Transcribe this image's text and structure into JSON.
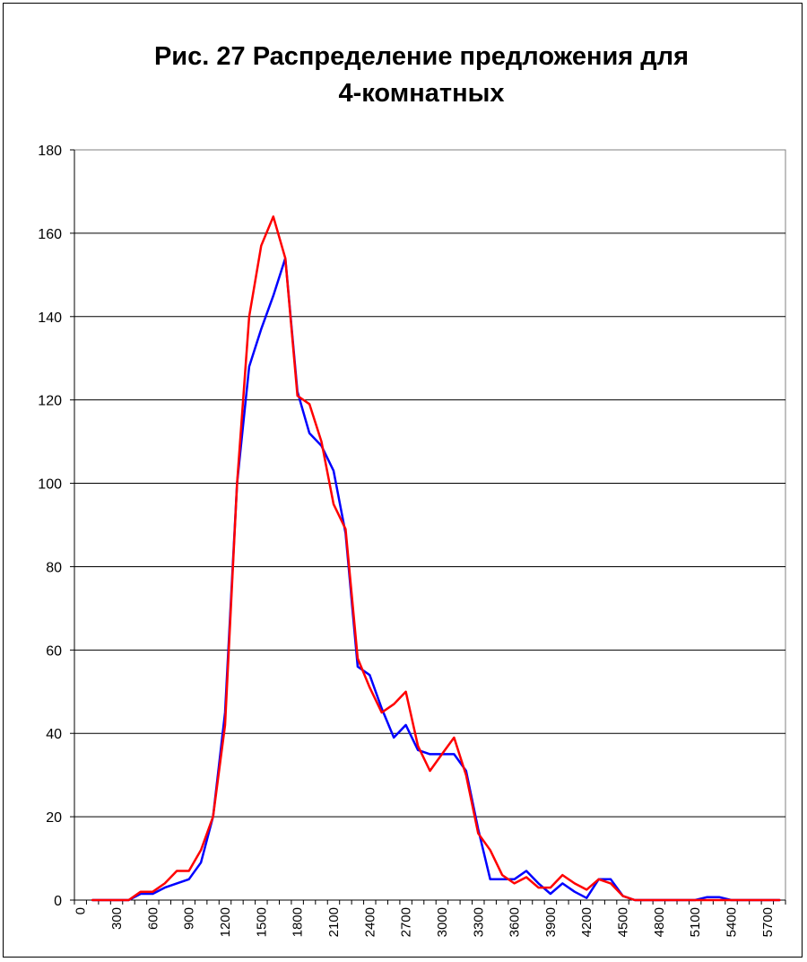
{
  "chart_data": {
    "type": "line",
    "title_lines": [
      "Рис. 27 Распределение предложения для",
      "4-комнатных"
    ],
    "ylim": [
      0,
      180
    ],
    "yticks": [
      0,
      20,
      40,
      60,
      80,
      100,
      120,
      140,
      160,
      180
    ],
    "x_labels": [
      "0",
      "300",
      "600",
      "900",
      "1200",
      "1500",
      "1800",
      "2100",
      "2400",
      "2700",
      "3000",
      "3300",
      "3600",
      "3900",
      "4200",
      "4500",
      "4800",
      "5100",
      "5400",
      "5700"
    ],
    "grid": true,
    "series": [
      {
        "color": "#0000ff",
        "points": [
          [
            100,
            0
          ],
          [
            200,
            0
          ],
          [
            300,
            0
          ],
          [
            400,
            0
          ],
          [
            500,
            1.5
          ],
          [
            600,
            1.5
          ],
          [
            700,
            3
          ],
          [
            800,
            4
          ],
          [
            900,
            5
          ],
          [
            1000,
            9
          ],
          [
            1100,
            20
          ],
          [
            1200,
            45
          ],
          [
            1300,
            100
          ],
          [
            1400,
            128
          ],
          [
            1500,
            137
          ],
          [
            1600,
            145
          ],
          [
            1700,
            154
          ],
          [
            1800,
            122
          ],
          [
            1900,
            112
          ],
          [
            2000,
            109
          ],
          [
            2100,
            103
          ],
          [
            2200,
            88
          ],
          [
            2300,
            56
          ],
          [
            2400,
            54
          ],
          [
            2500,
            46
          ],
          [
            2600,
            39
          ],
          [
            2700,
            42
          ],
          [
            2800,
            36
          ],
          [
            2900,
            35
          ],
          [
            3000,
            35
          ],
          [
            3100,
            35
          ],
          [
            3200,
            31
          ],
          [
            3300,
            17
          ],
          [
            3400,
            5
          ],
          [
            3500,
            5
          ],
          [
            3600,
            5
          ],
          [
            3700,
            7
          ],
          [
            3800,
            4
          ],
          [
            3900,
            1.5
          ],
          [
            4000,
            4
          ],
          [
            4100,
            2
          ],
          [
            4200,
            0.5
          ],
          [
            4300,
            5
          ],
          [
            4400,
            5
          ],
          [
            4500,
            1
          ],
          [
            4600,
            0
          ],
          [
            4700,
            0
          ],
          [
            4800,
            0
          ],
          [
            4900,
            0
          ],
          [
            5000,
            0
          ],
          [
            5100,
            0
          ],
          [
            5200,
            0.7
          ],
          [
            5300,
            0.7
          ],
          [
            5400,
            0
          ],
          [
            5500,
            0
          ],
          [
            5600,
            0
          ],
          [
            5700,
            0
          ],
          [
            5800,
            0
          ]
        ]
      },
      {
        "color": "#ff0000",
        "points": [
          [
            100,
            0
          ],
          [
            200,
            0
          ],
          [
            300,
            0
          ],
          [
            400,
            0
          ],
          [
            500,
            2
          ],
          [
            600,
            2
          ],
          [
            700,
            4
          ],
          [
            800,
            7
          ],
          [
            900,
            7
          ],
          [
            1000,
            12
          ],
          [
            1100,
            20
          ],
          [
            1200,
            42
          ],
          [
            1300,
            100
          ],
          [
            1400,
            140
          ],
          [
            1500,
            157
          ],
          [
            1600,
            164
          ],
          [
            1700,
            154
          ],
          [
            1800,
            121
          ],
          [
            1900,
            119
          ],
          [
            2000,
            110
          ],
          [
            2100,
            95
          ],
          [
            2200,
            89
          ],
          [
            2300,
            58
          ],
          [
            2400,
            51
          ],
          [
            2500,
            45
          ],
          [
            2600,
            47
          ],
          [
            2700,
            50
          ],
          [
            2800,
            37
          ],
          [
            2900,
            31
          ],
          [
            3000,
            35
          ],
          [
            3100,
            39
          ],
          [
            3200,
            30
          ],
          [
            3300,
            16
          ],
          [
            3400,
            12
          ],
          [
            3500,
            6
          ],
          [
            3600,
            4
          ],
          [
            3700,
            5.5
          ],
          [
            3800,
            3
          ],
          [
            3900,
            3
          ],
          [
            4000,
            6
          ],
          [
            4100,
            4
          ],
          [
            4200,
            2.5
          ],
          [
            4300,
            5
          ],
          [
            4400,
            4
          ],
          [
            4500,
            1
          ],
          [
            4600,
            0
          ],
          [
            4700,
            0
          ],
          [
            4800,
            0
          ],
          [
            4900,
            0
          ],
          [
            5000,
            0
          ],
          [
            5100,
            0
          ],
          [
            5200,
            0
          ],
          [
            5300,
            0
          ],
          [
            5400,
            0
          ],
          [
            5500,
            0
          ],
          [
            5600,
            0
          ],
          [
            5700,
            0
          ],
          [
            5800,
            0
          ]
        ]
      }
    ]
  }
}
